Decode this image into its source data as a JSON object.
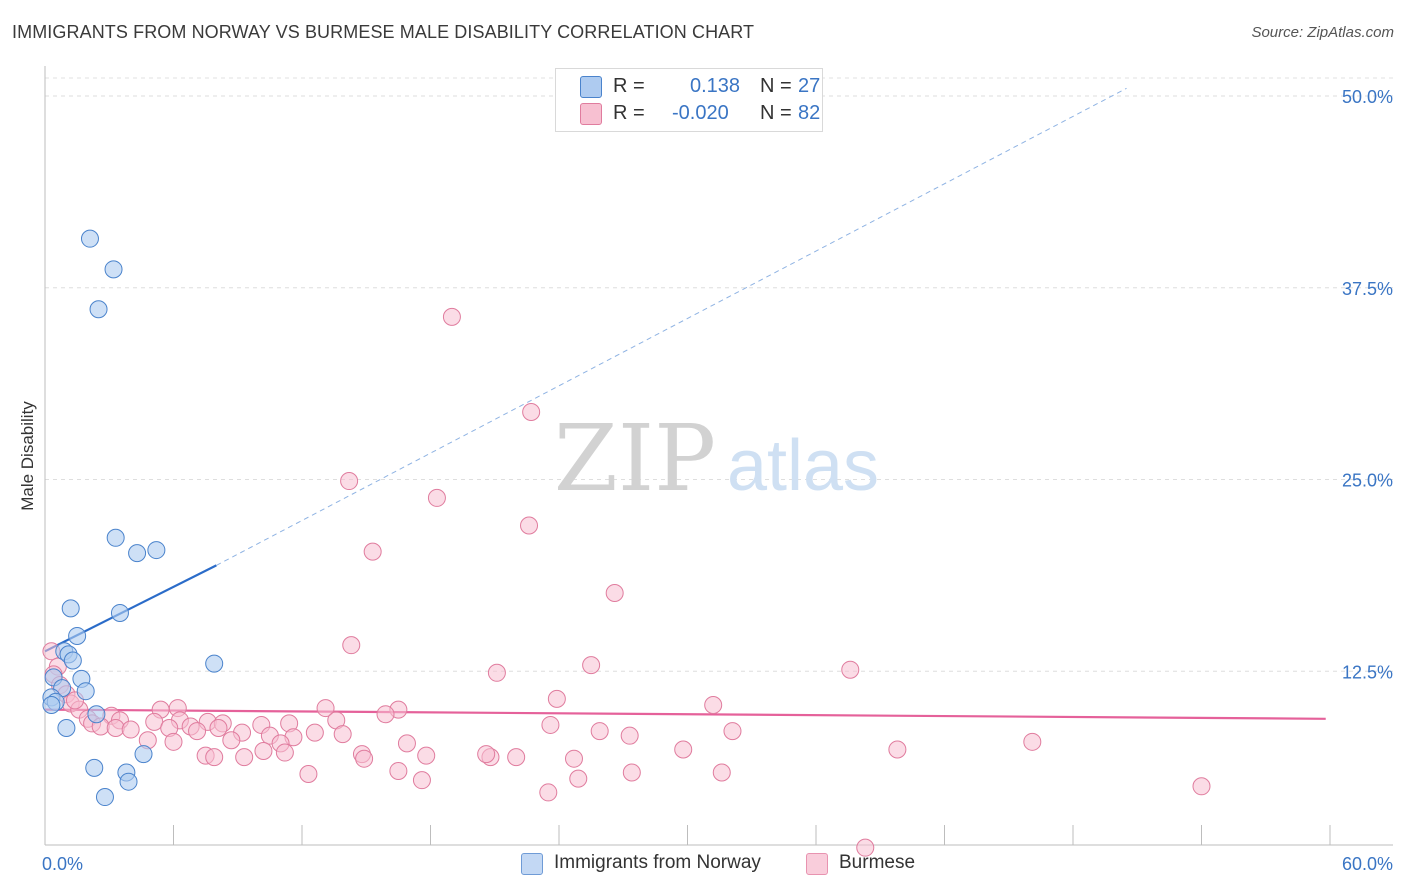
{
  "title": "IMMIGRANTS FROM NORWAY VS BURMESE MALE DISABILITY CORRELATION CHART",
  "source": "Source: ZipAtlas.com",
  "watermark": {
    "zip": "ZIP",
    "atlas": "atlas"
  },
  "legend": {
    "rows": [
      {
        "r_label": "R =",
        "r_value": "0.138",
        "n_label": "N =",
        "n_value": "27"
      },
      {
        "r_label": "R =",
        "r_value": "-0.020",
        "n_label": "N =",
        "n_value": "82"
      }
    ]
  },
  "chart_data": {
    "type": "scatter",
    "title": "IMMIGRANTS FROM NORWAY VS BURMESE MALE DISABILITY CORRELATION CHART",
    "xlabel": "",
    "ylabel": "Male Disability",
    "xlim": [
      0,
      60
    ],
    "ylim": [
      0,
      50
    ],
    "x_tick_labels": [
      "0.0%",
      "60.0%"
    ],
    "y_ticks": [
      {
        "value": 12.5,
        "label": "12.5%"
      },
      {
        "value": 25.0,
        "label": "25.0%"
      },
      {
        "value": 37.5,
        "label": "37.5%"
      },
      {
        "value": 50.0,
        "label": "50.0%"
      }
    ],
    "x_minor_ticks": [
      0,
      6,
      12,
      18,
      24,
      30,
      36,
      42,
      48,
      54,
      60
    ],
    "colors": {
      "norway_fill": "#aecbf0",
      "norway_stroke": "#4a83cc",
      "norway_line": "#2b6cc9",
      "burmese_fill": "#f7c0d1",
      "burmese_stroke": "#e07c9e",
      "burmese_line": "#e5619a"
    },
    "series": [
      {
        "name": "Immigrants from Norway",
        "points": [
          [
            2.1,
            40.7
          ],
          [
            3.2,
            38.7
          ],
          [
            2.5,
            36.1
          ],
          [
            3.3,
            21.2
          ],
          [
            4.3,
            20.2
          ],
          [
            5.2,
            20.4
          ],
          [
            1.2,
            16.6
          ],
          [
            3.5,
            16.3
          ],
          [
            1.5,
            14.8
          ],
          [
            0.9,
            13.8
          ],
          [
            1.1,
            13.6
          ],
          [
            1.3,
            13.2
          ],
          [
            7.9,
            13.0
          ],
          [
            0.4,
            12.1
          ],
          [
            1.7,
            12.0
          ],
          [
            0.8,
            11.4
          ],
          [
            1.9,
            11.2
          ],
          [
            0.3,
            10.8
          ],
          [
            0.5,
            10.5
          ],
          [
            0.3,
            10.3
          ],
          [
            2.4,
            9.7
          ],
          [
            1.0,
            8.8
          ],
          [
            4.6,
            7.1
          ],
          [
            2.3,
            6.2
          ],
          [
            3.8,
            5.9
          ],
          [
            3.9,
            5.3
          ],
          [
            2.8,
            4.3
          ]
        ],
        "trend": {
          "x": [
            0,
            8.0
          ],
          "y": [
            13.8,
            19.4
          ],
          "extended_to": [
            50.5,
            50.5
          ]
        }
      },
      {
        "name": "Burmese",
        "points": [
          [
            19.0,
            35.6
          ],
          [
            22.7,
            29.4
          ],
          [
            14.2,
            24.9
          ],
          [
            18.3,
            23.8
          ],
          [
            22.6,
            22.0
          ],
          [
            15.3,
            20.3
          ],
          [
            26.6,
            17.6
          ],
          [
            14.3,
            14.2
          ],
          [
            25.5,
            12.9
          ],
          [
            21.1,
            12.4
          ],
          [
            37.6,
            12.6
          ],
          [
            0.3,
            13.8
          ],
          [
            0.6,
            12.8
          ],
          [
            0.4,
            12.3
          ],
          [
            0.7,
            11.6
          ],
          [
            1.0,
            11.0
          ],
          [
            23.9,
            10.7
          ],
          [
            31.2,
            10.3
          ],
          [
            1.2,
            10.4
          ],
          [
            1.6,
            10.0
          ],
          [
            6.2,
            10.1
          ],
          [
            5.4,
            10.0
          ],
          [
            13.1,
            10.1
          ],
          [
            16.5,
            10.0
          ],
          [
            15.9,
            9.7
          ],
          [
            2.0,
            9.4
          ],
          [
            3.1,
            9.6
          ],
          [
            3.5,
            9.3
          ],
          [
            5.1,
            9.2
          ],
          [
            6.3,
            9.3
          ],
          [
            7.6,
            9.2
          ],
          [
            8.3,
            9.1
          ],
          [
            10.1,
            9.0
          ],
          [
            11.4,
            9.1
          ],
          [
            13.6,
            9.3
          ],
          [
            2.2,
            9.1
          ],
          [
            2.6,
            8.9
          ],
          [
            3.3,
            8.8
          ],
          [
            4.0,
            8.7
          ],
          [
            5.8,
            8.8
          ],
          [
            6.8,
            8.9
          ],
          [
            7.1,
            8.6
          ],
          [
            8.1,
            8.8
          ],
          [
            9.2,
            8.5
          ],
          [
            10.5,
            8.3
          ],
          [
            11.6,
            8.2
          ],
          [
            12.6,
            8.5
          ],
          [
            13.9,
            8.4
          ],
          [
            23.6,
            9.0
          ],
          [
            25.9,
            8.6
          ],
          [
            27.3,
            8.3
          ],
          [
            32.1,
            8.6
          ],
          [
            46.1,
            7.9
          ],
          [
            6.0,
            7.9
          ],
          [
            8.7,
            8.0
          ],
          [
            11.0,
            7.8
          ],
          [
            16.9,
            7.8
          ],
          [
            4.8,
            8.0
          ],
          [
            7.5,
            7.0
          ],
          [
            10.2,
            7.3
          ],
          [
            11.2,
            7.2
          ],
          [
            14.8,
            7.1
          ],
          [
            17.8,
            7.0
          ],
          [
            20.8,
            6.9
          ],
          [
            22.0,
            6.9
          ],
          [
            24.7,
            6.8
          ],
          [
            29.8,
            7.4
          ],
          [
            39.8,
            7.4
          ],
          [
            7.9,
            6.9
          ],
          [
            9.3,
            6.9
          ],
          [
            14.9,
            6.8
          ],
          [
            16.5,
            6.0
          ],
          [
            12.3,
            5.8
          ],
          [
            27.4,
            5.9
          ],
          [
            31.6,
            5.9
          ],
          [
            17.6,
            5.4
          ],
          [
            24.9,
            5.5
          ],
          [
            23.5,
            4.6
          ],
          [
            54.0,
            5.0
          ],
          [
            38.3,
            1.0
          ],
          [
            1.4,
            10.6
          ],
          [
            20.6,
            7.1
          ]
        ],
        "trend": {
          "x": [
            0,
            59.8
          ],
          "y": [
            10.0,
            9.4
          ]
        }
      }
    ],
    "legend_position": "bottom"
  }
}
